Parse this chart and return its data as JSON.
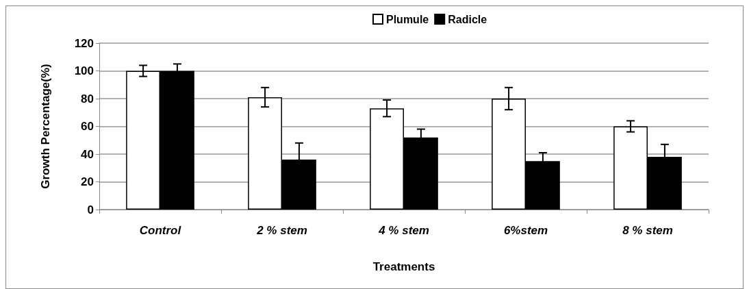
{
  "chart_data": {
    "type": "bar",
    "xlabel": "Treatments",
    "ylabel": "Growth Percentage(%)",
    "categories": [
      "Control",
      "2 % stem",
      "4 % stem",
      "6%stem",
      "8 % stem"
    ],
    "series": [
      {
        "name": "Plumule",
        "color": "#ffffff",
        "values": [
          100,
          81,
          73,
          80,
          60
        ],
        "errors": [
          4,
          7,
          6,
          8,
          4
        ]
      },
      {
        "name": "Radicle",
        "color": "#000000",
        "values": [
          100,
          36,
          52,
          35,
          38
        ],
        "errors": [
          5,
          12,
          6,
          6,
          9
        ]
      }
    ],
    "ylim": [
      0,
      120
    ],
    "yticks": [
      0,
      20,
      40,
      60,
      80,
      100,
      120
    ],
    "grid": "y",
    "legend": "top"
  }
}
